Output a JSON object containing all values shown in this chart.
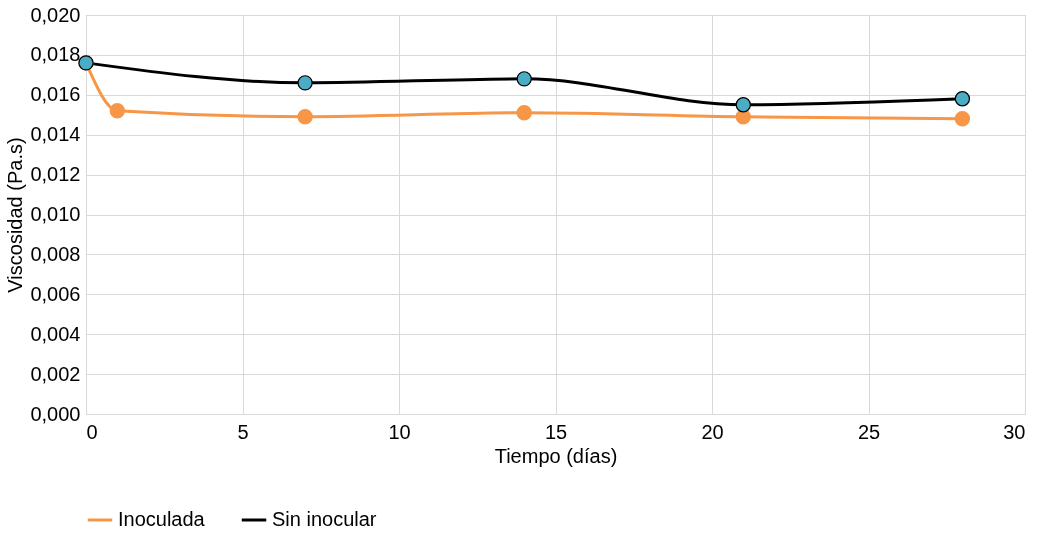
{
  "chart_data": {
    "type": "line",
    "xlabel": "Tiempo (días)",
    "ylabel": "Viscosidad (Pa.s)",
    "series": [
      {
        "name": "Inoculada",
        "color": "#f79646",
        "x": [
          0,
          1,
          7,
          14,
          21,
          28
        ],
        "values": [
          0.0176,
          0.0152,
          0.0149,
          0.0151,
          0.0149,
          0.0148
        ]
      },
      {
        "name": "Sin inocular",
        "color": "#000000",
        "x": [
          0,
          7,
          14,
          21,
          28
        ],
        "values": [
          0.0176,
          0.0166,
          0.0168,
          0.0155,
          0.0158
        ]
      }
    ],
    "xlim": [
      0,
      30
    ],
    "xticks": [
      0,
      5,
      10,
      15,
      20,
      25,
      30
    ],
    "ylim": [
      0,
      0.02
    ],
    "yticks": [
      {
        "value": 0,
        "label": "0,000"
      },
      {
        "value": 0.002,
        "label": "0,002"
      },
      {
        "value": 0.004,
        "label": "0,004"
      },
      {
        "value": 0.006,
        "label": "0,006"
      },
      {
        "value": 0.008,
        "label": "0,008"
      },
      {
        "value": 0.01,
        "label": "0,010"
      },
      {
        "value": 0.012,
        "label": "0,012"
      },
      {
        "value": 0.014,
        "label": "0,014"
      },
      {
        "value": 0.016,
        "label": "0,016"
      },
      {
        "value": 0.018,
        "label": "0,018"
      },
      {
        "value": 0.02,
        "label": "0,020"
      }
    ],
    "grid": true,
    "legend": "bottom",
    "marker": "circle",
    "line_style": "solid"
  }
}
